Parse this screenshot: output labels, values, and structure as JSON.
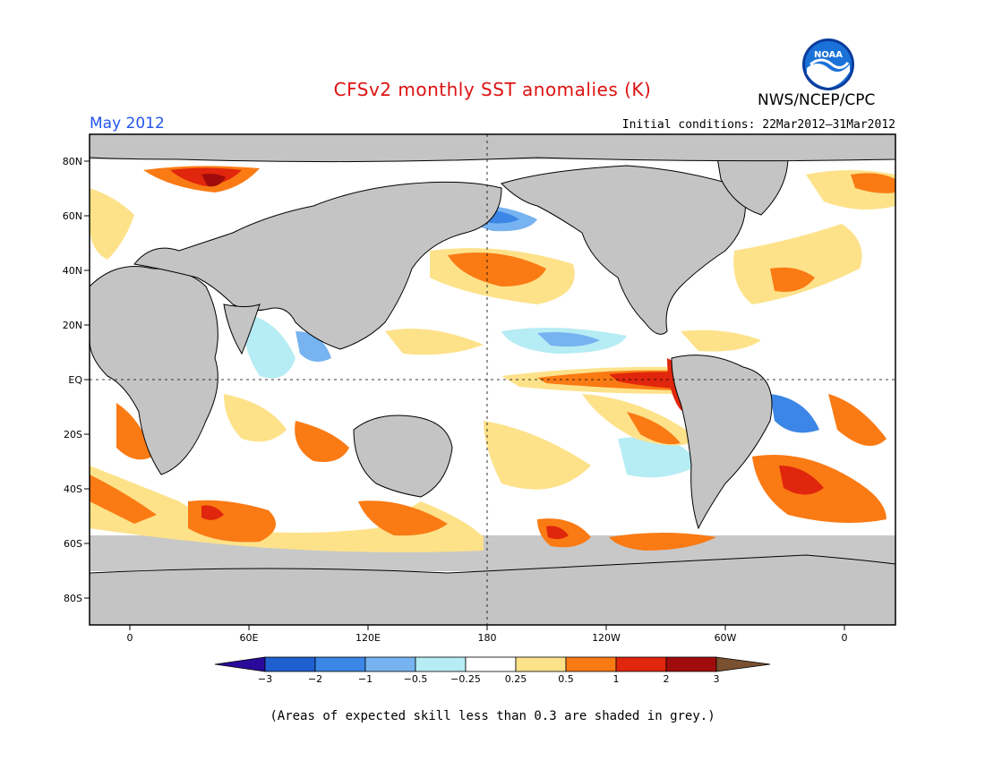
{
  "title": "CFSv2 monthly SST anomalies (K)",
  "agency": "NWS/NCEP/CPC",
  "logo_text": "NOAA",
  "month_label": "May 2012",
  "initial_conditions": "Initial conditions: 22Mar2012–31Mar2012",
  "footnote": "(Areas of expected skill less than 0.3 are shaded in grey.)",
  "colors": {
    "title": "#dd1111",
    "month": "#2255ee",
    "land": "#c4c4c4",
    "ocean": "#ffffff",
    "low_skill": "#c4c4c4"
  },
  "lat_labels": [
    "80N",
    "60N",
    "40N",
    "20N",
    "EQ",
    "20S",
    "40S",
    "60S",
    "80S"
  ],
  "lon_labels": [
    "0",
    "60E",
    "120E",
    "180",
    "120W",
    "60W",
    "0"
  ],
  "colorbar": {
    "ticks": [
      "−3",
      "−2",
      "−1",
      "−0.5",
      "−0.25",
      "0.25",
      "0.5",
      "1",
      "2",
      "3"
    ],
    "colors": [
      "#2a0a9a",
      "#1f5fcf",
      "#3b86e6",
      "#76b3f0",
      "#b6ecf4",
      "#ffffff",
      "#fde28a",
      "#fa7a14",
      "#e0260c",
      "#a00c0c",
      "#7a5030"
    ]
  },
  "anomaly_regions": [
    {
      "name": "equatorial-east-pacific",
      "category": "2"
    },
    {
      "name": "north-pacific-warm",
      "category": "1"
    },
    {
      "name": "southern-ocean-warm",
      "category": "1"
    },
    {
      "name": "barents-sea-warm",
      "category": "2"
    },
    {
      "name": "bering-sea-cool",
      "category": "-1"
    },
    {
      "name": "indian-ocean-cool",
      "category": "-0.5"
    }
  ]
}
